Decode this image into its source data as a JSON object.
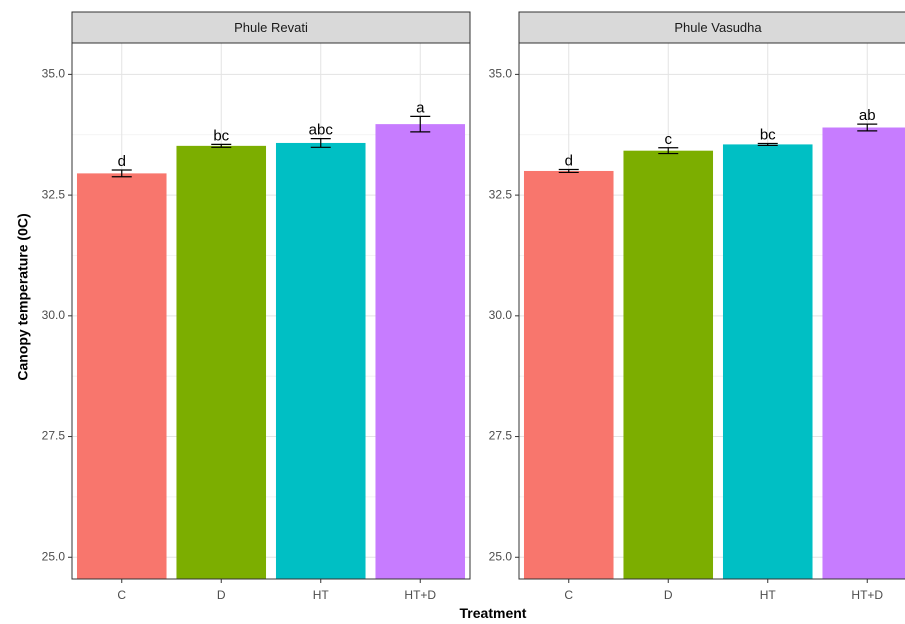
{
  "chart_data": {
    "type": "bar",
    "xlabel": "Treatment",
    "ylabel": "Canopy temperature (0C)",
    "ylim": [
      24.55,
      35.65
    ],
    "yticks": [
      25.0,
      27.5,
      30.0,
      32.5,
      35.0
    ],
    "ytick_labels": [
      "25.0",
      "27.5",
      "30.0",
      "32.5",
      "35.0"
    ],
    "grid": true,
    "categories": [
      "C",
      "D",
      "HT",
      "HT+D"
    ],
    "colors": [
      "#F8766D",
      "#7CAE00",
      "#00BFC4",
      "#C77CFF"
    ],
    "panels": [
      {
        "strip": "Phule Revati",
        "values": [
          32.95,
          33.52,
          33.58,
          33.97
        ],
        "errors": [
          0.07,
          0.03,
          0.09,
          0.16
        ],
        "labels": [
          "d",
          "bc",
          "abc",
          "a"
        ]
      },
      {
        "strip": "Phule Vasudha",
        "values": [
          33.0,
          33.42,
          33.55,
          33.9
        ],
        "errors": [
          0.03,
          0.06,
          0.02,
          0.07
        ],
        "labels": [
          "d",
          "c",
          "bc",
          "ab"
        ]
      }
    ]
  }
}
